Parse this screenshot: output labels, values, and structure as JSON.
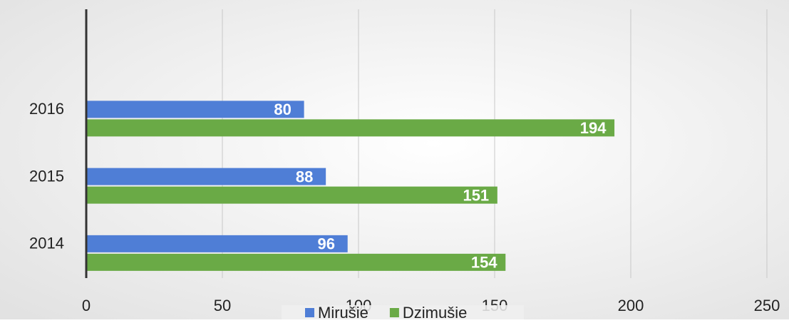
{
  "chart_data": {
    "type": "bar",
    "orientation": "horizontal",
    "categories": [
      "2014",
      "2015",
      "2016",
      null
    ],
    "series": [
      {
        "name": "Mirušie",
        "color": "#4f7ed6",
        "values": [
          96,
          88,
          80,
          null
        ]
      },
      {
        "name": "Dzimušie",
        "color": "#6aaa46",
        "values": [
          154,
          151,
          194,
          null
        ]
      }
    ],
    "xlim": [
      0,
      250
    ],
    "xticks": [
      0,
      50,
      100,
      150,
      200,
      250
    ],
    "grid": true,
    "legend": "bottom"
  }
}
